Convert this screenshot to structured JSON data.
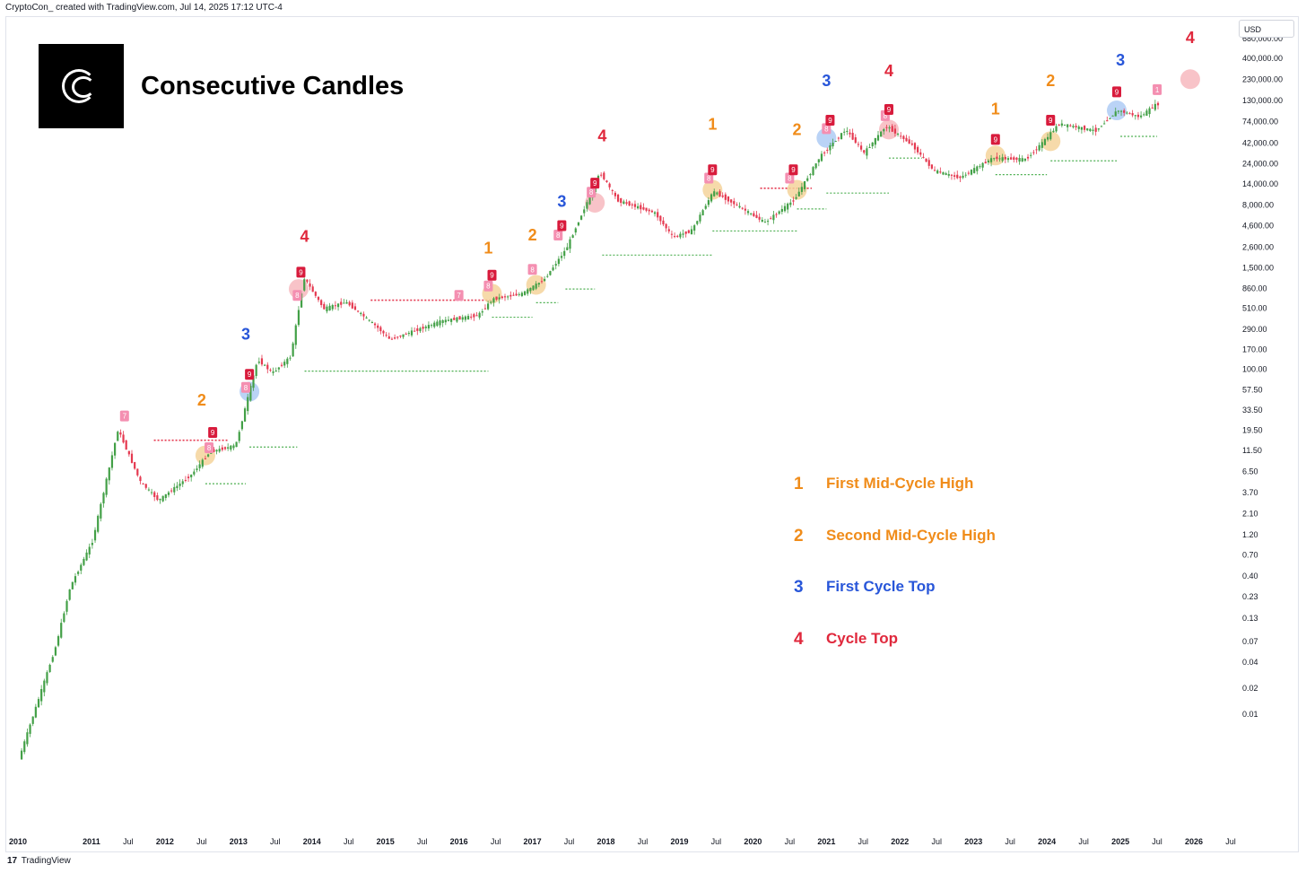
{
  "header": {
    "caption": "CryptoCon_ created with TradingView.com, Jul 14, 2025 17:12 UTC-4"
  },
  "brand": {
    "title": "Consecutive Candles",
    "logo_icon": "cc-logo-icon"
  },
  "currency": "USD",
  "footer": {
    "logo_glyph": "17",
    "name": "TradingView"
  },
  "colors": {
    "up": "#26a69a",
    "up_green": "#4caf50",
    "down": "#e53950",
    "orange": "#f08c1a",
    "blue": "#2856d9",
    "red": "#e0283c",
    "pink": "#f48fb1"
  },
  "legend": [
    {
      "number": "1",
      "label": "First Mid-Cycle High",
      "color": "#f08c1a"
    },
    {
      "number": "2",
      "label": "Second Mid-Cycle High",
      "color": "#f08c1a"
    },
    {
      "number": "3",
      "label": "First Cycle Top",
      "color": "#2856d9"
    },
    {
      "number": "4",
      "label": "Cycle Top",
      "color": "#e0283c"
    }
  ],
  "chart_data": {
    "type": "candlestick",
    "y_scale": "log",
    "y_ticks": [
      "0.01",
      "0.02",
      "0.04",
      "0.07",
      "0.13",
      "0.23",
      "0.40",
      "0.70",
      "1.20",
      "2.10",
      "3.70",
      "6.50",
      "11.50",
      "19.50",
      "33.50",
      "57.50",
      "100.00",
      "170.00",
      "290.00",
      "510.00",
      "860.00",
      "1,500.00",
      "2,600.00",
      "4,600.00",
      "8,000.00",
      "14,000.00",
      "24,000.00",
      "42,000.00",
      "74,000.00",
      "130,000.00",
      "230,000.00",
      "400,000.00",
      "680,000.00"
    ],
    "x_ticks": [
      "2010",
      "2011",
      "Jul",
      "2012",
      "Jul",
      "2013",
      "Jul",
      "2014",
      "Jul",
      "2015",
      "Jul",
      "2016",
      "Jul",
      "2017",
      "Jul",
      "2018",
      "Jul",
      "2019",
      "Jul",
      "2020",
      "Jul",
      "2021",
      "Jul",
      "2022",
      "Jul",
      "2023",
      "Jul",
      "2024",
      "Jul",
      "2025",
      "Jul",
      "2026",
      "Jul"
    ],
    "price_path": [
      {
        "date": "2010.05",
        "price": 0.003
      },
      {
        "date": "2010.55",
        "price": 0.06
      },
      {
        "date": "2010.75",
        "price": 0.3
      },
      {
        "date": "2011.05",
        "price": 1
      },
      {
        "date": "2011.4",
        "price": 20
      },
      {
        "date": "2011.7",
        "price": 5
      },
      {
        "date": "2011.95",
        "price": 3
      },
      {
        "date": "2012.4",
        "price": 6
      },
      {
        "date": "2012.65",
        "price": 11
      },
      {
        "date": "2013.0",
        "price": 13
      },
      {
        "date": "2013.3",
        "price": 130
      },
      {
        "date": "2013.5",
        "price": 90
      },
      {
        "date": "2013.75",
        "price": 140
      },
      {
        "date": "2013.93",
        "price": 1150
      },
      {
        "date": "2014.2",
        "price": 500
      },
      {
        "date": "2014.5",
        "price": 600
      },
      {
        "date": "2014.9",
        "price": 320
      },
      {
        "date": "2015.1",
        "price": 220
      },
      {
        "date": "2015.8",
        "price": 360
      },
      {
        "date": "2016.3",
        "price": 420
      },
      {
        "date": "2016.5",
        "price": 650
      },
      {
        "date": "2016.9",
        "price": 750
      },
      {
        "date": "2017.2",
        "price": 1100
      },
      {
        "date": "2017.5",
        "price": 2500
      },
      {
        "date": "2017.96",
        "price": 19000
      },
      {
        "date": "2018.2",
        "price": 9000
      },
      {
        "date": "2018.7",
        "price": 6500
      },
      {
        "date": "2018.95",
        "price": 3400
      },
      {
        "date": "2019.2",
        "price": 4000
      },
      {
        "date": "2019.5",
        "price": 11500
      },
      {
        "date": "2019.9",
        "price": 7200
      },
      {
        "date": "2020.2",
        "price": 5000
      },
      {
        "date": "2020.6",
        "price": 9200
      },
      {
        "date": "2020.95",
        "price": 29000
      },
      {
        "date": "2021.3",
        "price": 60000
      },
      {
        "date": "2021.55",
        "price": 32000
      },
      {
        "date": "2021.85",
        "price": 66000
      },
      {
        "date": "2022.2",
        "price": 40000
      },
      {
        "date": "2022.5",
        "price": 20000
      },
      {
        "date": "2022.85",
        "price": 16500
      },
      {
        "date": "2023.3",
        "price": 28000
      },
      {
        "date": "2023.75",
        "price": 27000
      },
      {
        "date": "2024.0",
        "price": 44000
      },
      {
        "date": "2024.2",
        "price": 70000
      },
      {
        "date": "2024.7",
        "price": 58000
      },
      {
        "date": "2025.0",
        "price": 100000
      },
      {
        "date": "2025.3",
        "price": 84000
      },
      {
        "date": "2025.53",
        "price": 118000
      }
    ],
    "cycle_markers": [
      {
        "label": "2",
        "date": "2012.5",
        "price": 38,
        "color": "#f08c1a"
      },
      {
        "label": "3",
        "date": "2013.1",
        "price": 220,
        "color": "#2856d9"
      },
      {
        "label": "4",
        "date": "2013.9",
        "price": 3000,
        "color": "#e0283c"
      },
      {
        "label": "1",
        "date": "2016.4",
        "price": 2200,
        "color": "#f08c1a"
      },
      {
        "label": "2",
        "date": "2017.0",
        "price": 3100,
        "color": "#f08c1a"
      },
      {
        "label": "3",
        "date": "2017.4",
        "price": 7600,
        "color": "#2856d9"
      },
      {
        "label": "4",
        "date": "2017.95",
        "price": 44000,
        "color": "#e0283c"
      },
      {
        "label": "1",
        "date": "2019.45",
        "price": 60000,
        "color": "#f08c1a"
      },
      {
        "label": "2",
        "date": "2020.6",
        "price": 52000,
        "color": "#f08c1a"
      },
      {
        "label": "3",
        "date": "2021.0",
        "price": 190000,
        "color": "#2856d9"
      },
      {
        "label": "4",
        "date": "2021.85",
        "price": 250000,
        "color": "#e0283c"
      },
      {
        "label": "1",
        "date": "2023.3",
        "price": 90000,
        "color": "#f08c1a"
      },
      {
        "label": "2",
        "date": "2024.05",
        "price": 190000,
        "color": "#f08c1a"
      },
      {
        "label": "3",
        "date": "2025.0",
        "price": 330000,
        "color": "#2856d9"
      },
      {
        "label": "4",
        "date": "2025.95",
        "price": 600000,
        "color": "#e0283c"
      }
    ],
    "highlight_circles": [
      {
        "date": "2012.55",
        "price": 10,
        "color": "#f5d49b"
      },
      {
        "date": "2013.15",
        "price": 55,
        "color": "#aecbf4"
      },
      {
        "date": "2013.82",
        "price": 850,
        "color": "#f7b8be"
      },
      {
        "date": "2016.45",
        "price": 750,
        "color": "#f5d49b"
      },
      {
        "date": "2017.05",
        "price": 950,
        "color": "#f5d49b"
      },
      {
        "date": "2017.85",
        "price": 8500,
        "color": "#f7b8be"
      },
      {
        "date": "2019.45",
        "price": 12000,
        "color": "#f5d49b"
      },
      {
        "date": "2020.6",
        "price": 12000,
        "color": "#f5d49b"
      },
      {
        "date": "2021.0",
        "price": 48000,
        "color": "#aecbf4"
      },
      {
        "date": "2021.85",
        "price": 60000,
        "color": "#f7b8be"
      },
      {
        "date": "2023.3",
        "price": 30000,
        "color": "#f5d49b"
      },
      {
        "date": "2024.05",
        "price": 44000,
        "color": "#f5d49b"
      },
      {
        "date": "2024.95",
        "price": 100000,
        "color": "#aecbf4"
      },
      {
        "date": "2025.95",
        "price": 230000,
        "color": "#f7b8be"
      }
    ],
    "sequence_badges": [
      {
        "label": "7",
        "date": "2011.45",
        "price": 28
      },
      {
        "label": "8",
        "date": "2012.6",
        "price": 12
      },
      {
        "label": "9",
        "date": "2012.65",
        "price": 18
      },
      {
        "label": "8",
        "date": "2013.1",
        "price": 60
      },
      {
        "label": "9",
        "date": "2013.15",
        "price": 85
      },
      {
        "label": "8",
        "date": "2013.8",
        "price": 700
      },
      {
        "label": "9",
        "date": "2013.85",
        "price": 1300
      },
      {
        "label": "7",
        "date": "2016.0",
        "price": 700
      },
      {
        "label": "8",
        "date": "2016.4",
        "price": 900
      },
      {
        "label": "9",
        "date": "2016.45",
        "price": 1200
      },
      {
        "label": "8",
        "date": "2017.0",
        "price": 1400
      },
      {
        "label": "8",
        "date": "2017.35",
        "price": 3500
      },
      {
        "label": "9",
        "date": "2017.4",
        "price": 4500
      },
      {
        "label": "8",
        "date": "2017.8",
        "price": 11000
      },
      {
        "label": "9",
        "date": "2017.85",
        "price": 14000
      },
      {
        "label": "8",
        "date": "2019.4",
        "price": 16000
      },
      {
        "label": "9",
        "date": "2019.45",
        "price": 20000
      },
      {
        "label": "8",
        "date": "2020.5",
        "price": 16000
      },
      {
        "label": "9",
        "date": "2020.55",
        "price": 20000
      },
      {
        "label": "8",
        "date": "2021.0",
        "price": 60000
      },
      {
        "label": "9",
        "date": "2021.05",
        "price": 75000
      },
      {
        "label": "8",
        "date": "2021.8",
        "price": 85000
      },
      {
        "label": "9",
        "date": "2021.85",
        "price": 100000
      },
      {
        "label": "9",
        "date": "2023.3",
        "price": 45000
      },
      {
        "label": "9",
        "date": "2024.05",
        "price": 75000
      },
      {
        "label": "9",
        "date": "2024.95",
        "price": 160000
      },
      {
        "label": "1",
        "date": "2025.5",
        "price": 170000
      }
    ],
    "resistance_lines": [
      {
        "from": "2011.85",
        "to": "2012.85",
        "price": 15
      },
      {
        "from": "2014.8",
        "to": "2016.5",
        "price": 630
      },
      {
        "from": "2020.1",
        "to": "2020.8",
        "price": 12500
      }
    ],
    "support_lines": [
      {
        "from": "2012.55",
        "to": "2013.1",
        "price": 4.7
      },
      {
        "from": "2013.15",
        "to": "2013.8",
        "price": 12.5
      },
      {
        "from": "2013.9",
        "to": "2016.4",
        "price": 95
      },
      {
        "from": "2016.45",
        "to": "2017.0",
        "price": 400
      },
      {
        "from": "2017.05",
        "to": "2017.35",
        "price": 590
      },
      {
        "from": "2017.45",
        "to": "2017.85",
        "price": 850
      },
      {
        "from": "2017.95",
        "to": "2019.45",
        "price": 2100
      },
      {
        "from": "2019.45",
        "to": "2020.6",
        "price": 4000
      },
      {
        "from": "2020.6",
        "to": "2021.0",
        "price": 7200
      },
      {
        "from": "2021.0",
        "to": "2021.85",
        "price": 11000
      },
      {
        "from": "2021.85",
        "to": "2022.3",
        "price": 28000
      },
      {
        "from": "2023.3",
        "to": "2024.0",
        "price": 18000
      },
      {
        "from": "2024.05",
        "to": "2024.95",
        "price": 26000
      },
      {
        "from": "2025.0",
        "to": "2025.5",
        "price": 50000
      }
    ]
  }
}
